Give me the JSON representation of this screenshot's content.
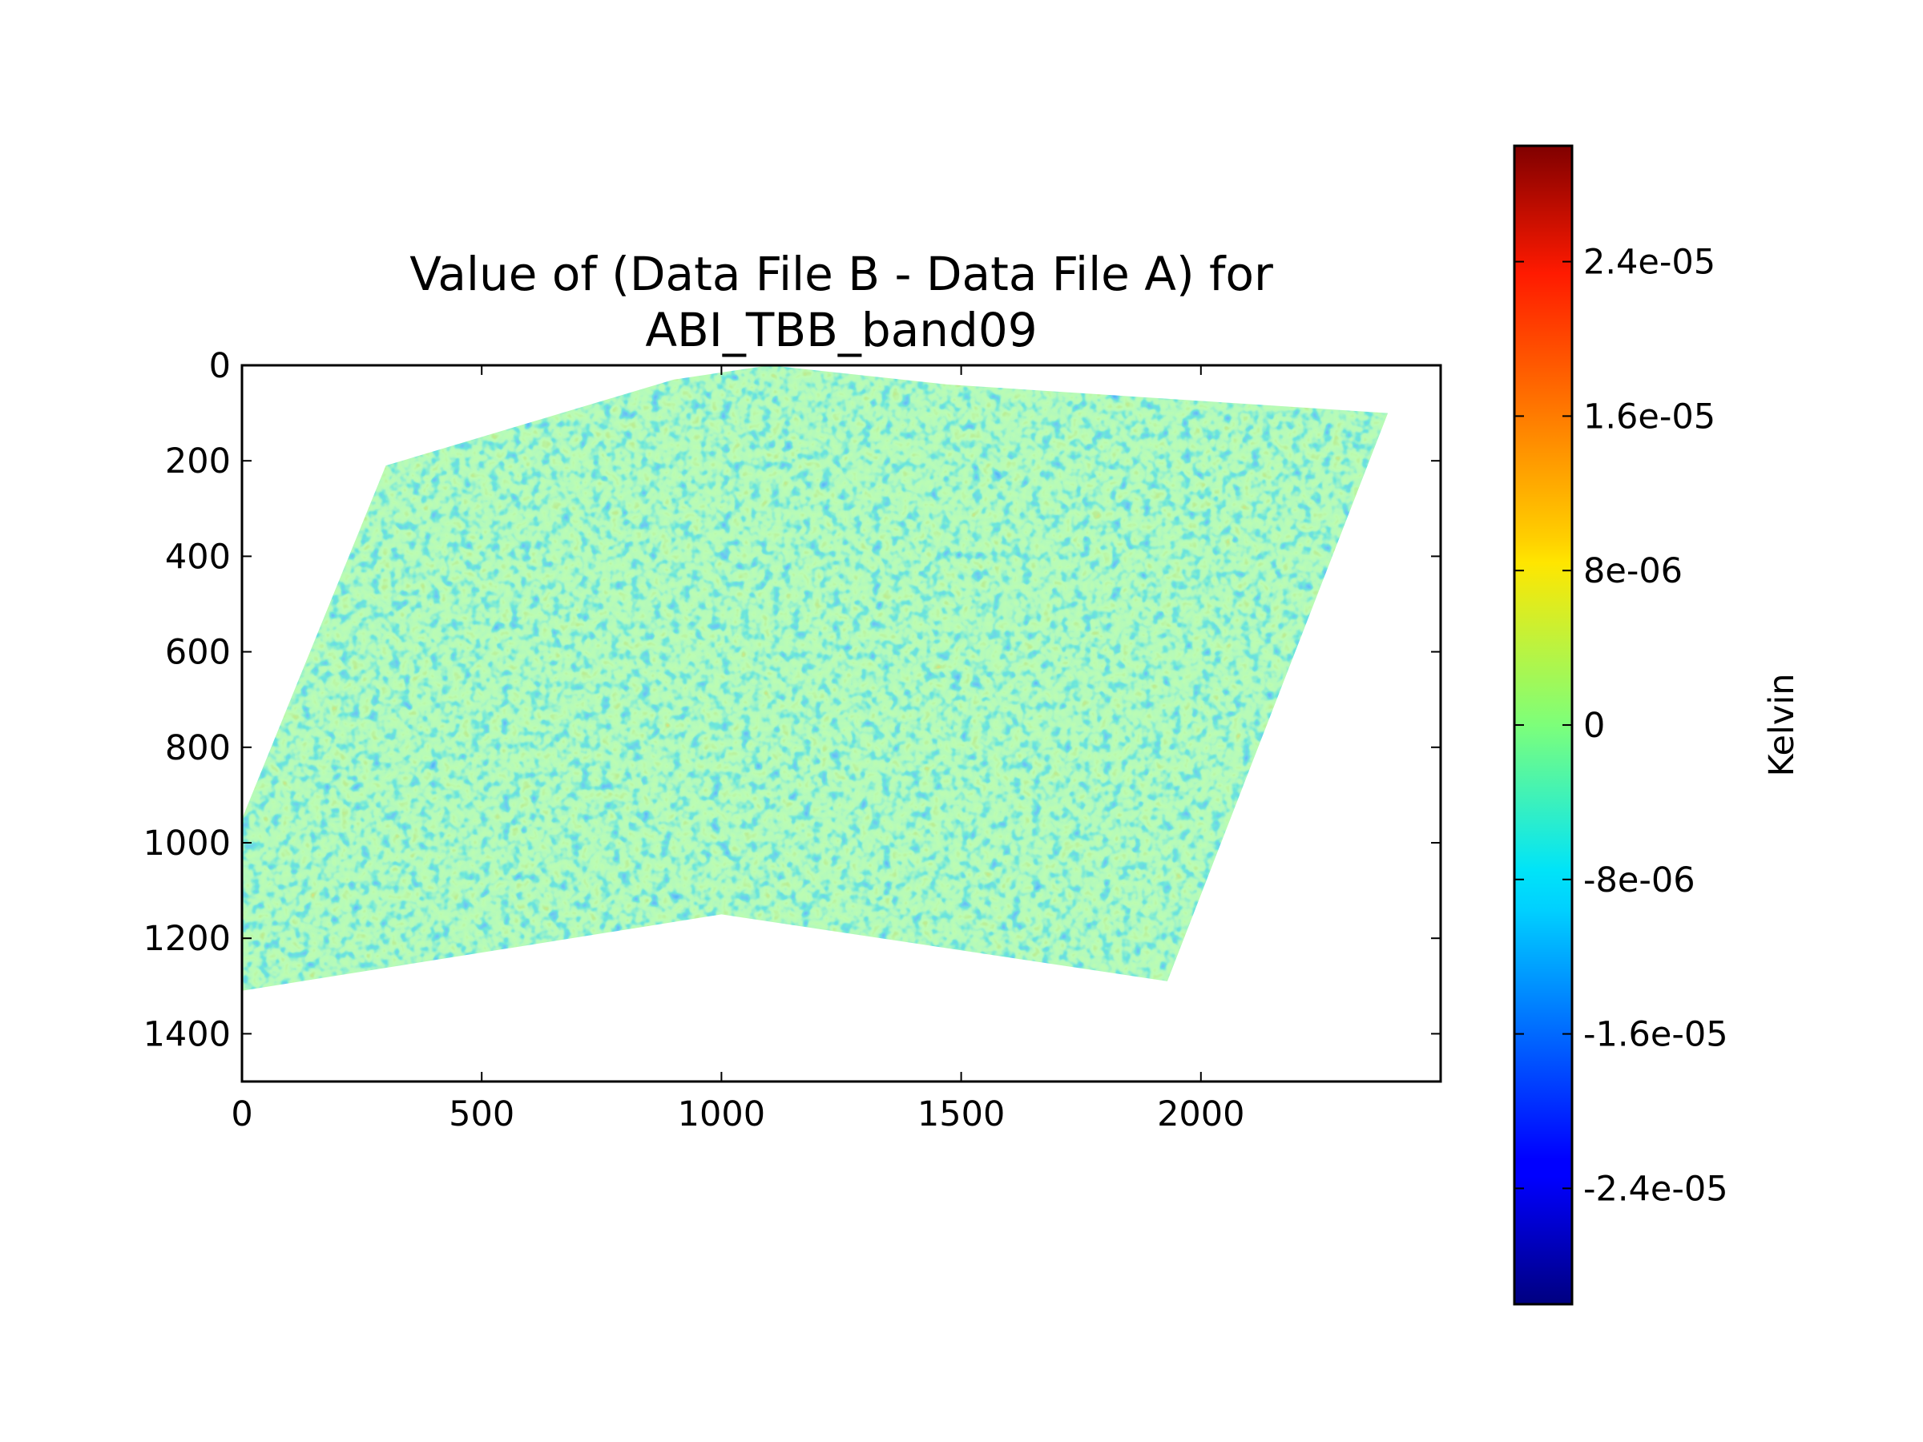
{
  "chart_data": {
    "type": "heatmap",
    "title_line1": "Value of (Data File B - Data File A) for",
    "title_line2": "ABI_TBB_band09",
    "xlabel": "",
    "ylabel": "",
    "xlim": [
      0,
      2500
    ],
    "ylim": [
      1500,
      0
    ],
    "x_ticks": [
      0,
      500,
      1000,
      1500,
      2000
    ],
    "y_ticks": [
      0,
      200,
      400,
      600,
      800,
      1000,
      1200,
      1400
    ],
    "x_tick_labels": [
      "0",
      "500",
      "1000",
      "1500",
      "2000"
    ],
    "y_tick_labels": [
      "0",
      "200",
      "400",
      "600",
      "800",
      "1000",
      "1200",
      "1400"
    ],
    "grid": false,
    "colormap": "jet",
    "colorbar": {
      "label": "Kelvin",
      "range": [
        -3e-05,
        3e-05
      ],
      "ticks": [
        2.4e-05,
        1.6e-05,
        8e-06,
        0,
        -8e-06,
        -1.6e-05,
        -2.4e-05
      ],
      "tick_labels": [
        "2.4e-05",
        "1.6e-05",
        "8e-06",
        "0",
        "-8e-06",
        "-1.6e-05",
        "-2.4e-05"
      ]
    },
    "data_footprint_outline": [
      [
        0,
        950
      ],
      [
        300,
        210
      ],
      [
        900,
        30
      ],
      [
        1100,
        0
      ],
      [
        1470,
        40
      ],
      [
        2390,
        100
      ],
      [
        1930,
        1290
      ],
      [
        1000,
        1150
      ],
      [
        0,
        1310
      ]
    ]
  }
}
